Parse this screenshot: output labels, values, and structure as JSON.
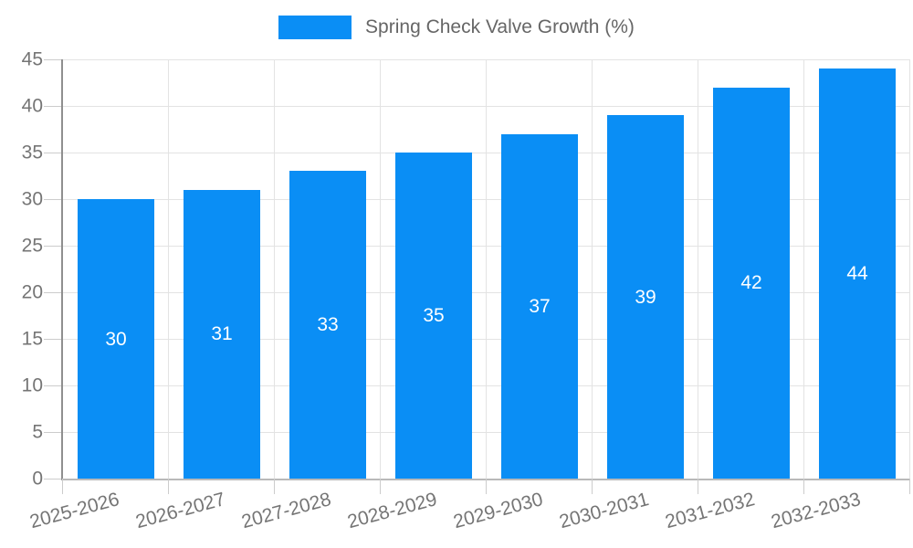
{
  "legend": {
    "label": "Spring Check Valve Growth (%)"
  },
  "chart_data": {
    "type": "bar",
    "title": "Spring Check Valve Growth (%)",
    "categories": [
      "2025-2026",
      "2026-2027",
      "2027-2028",
      "2028-2029",
      "2029-2030",
      "2030-2031",
      "2031-2032",
      "2032-2033"
    ],
    "values": [
      30,
      31,
      33,
      35,
      37,
      39,
      42,
      44
    ],
    "xlabel": "",
    "ylabel": "",
    "ylim": [
      0,
      45
    ],
    "ytick_step": 5,
    "grid": true,
    "legend_position": "top-center",
    "bar_labels_inside": true,
    "colors": {
      "bar": "#0a8ef5",
      "bar_label_text": "#ffffff",
      "axis_text": "#757575",
      "legend_text": "#666666",
      "gridline": "#e3e3e3",
      "y_axis_line": "#8f8f8f",
      "x_axis_line": "#b9b9b9",
      "tick": "#cccccc",
      "background": "#ffffff"
    }
  }
}
